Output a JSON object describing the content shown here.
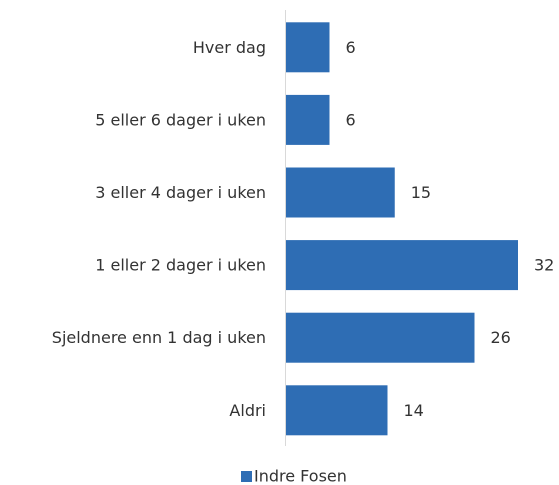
{
  "chart_data": {
    "type": "bar",
    "orientation": "horizontal",
    "categories": [
      "Hver dag",
      "5 eller 6 dager i uken",
      "3 eller 4 dager i uken",
      "1 eller 2 dager i uken",
      "Sjeldnere enn 1 dag i uken",
      "Aldri"
    ],
    "series": [
      {
        "name": "Indre Fosen",
        "color": "#2e6db4",
        "values": [
          6,
          6,
          15,
          32,
          26,
          14
        ]
      }
    ],
    "legend": "bottom"
  }
}
